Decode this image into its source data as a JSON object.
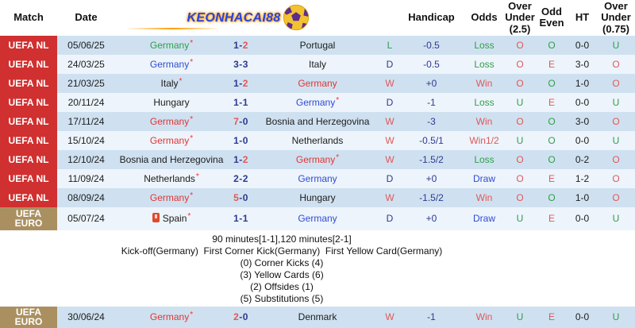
{
  "header": {
    "logo_text": "KEONHACAI88",
    "columns": {
      "match": "Match",
      "date": "Date",
      "handicap": "Handicap",
      "odds": "Odds",
      "over_under_25": "Over Under (2.5)",
      "odd_even": "Odd Even",
      "ht": "HT",
      "over_under_075": "Over Under (0.75)"
    }
  },
  "colors": {
    "palette": {
      "green": "#2f9e4b",
      "red": "#e05858",
      "team_red": "#e03535",
      "navy": "#2c3a90",
      "blue": "#2f4cd4",
      "black": "#1c1c1c",
      "badge_red": "#d03030",
      "badge_tan": "#aa9060",
      "row_odd": "#cfe1f0",
      "row_even": "#edf4fb"
    }
  },
  "rows": [
    {
      "comp": "UEFA NL",
      "comp_color": "badge_red",
      "date": "05/06/25",
      "home": {
        "name": "Germany",
        "color": "green",
        "star": true
      },
      "score": {
        "home": "1",
        "away": "2",
        "home_color": "navy",
        "away_color": "red"
      },
      "away": {
        "name": "Portugal",
        "color": "black",
        "star": false
      },
      "result": {
        "text": "L",
        "color": "green"
      },
      "handicap": "-0.5",
      "odds": {
        "text": "Loss",
        "color": "green"
      },
      "ou25": {
        "text": "O",
        "color": "red"
      },
      "oddeven": {
        "text": "O",
        "color": "green"
      },
      "ht": "0-0",
      "ou075": {
        "text": "U",
        "color": "green"
      }
    },
    {
      "comp": "UEFA NL",
      "comp_color": "badge_red",
      "date": "24/03/25",
      "home": {
        "name": "Germany",
        "color": "blue",
        "star": true
      },
      "score": {
        "home": "3",
        "away": "3",
        "home_color": "navy",
        "away_color": "navy"
      },
      "away": {
        "name": "Italy",
        "color": "black",
        "star": false
      },
      "result": {
        "text": "D",
        "color": "navy"
      },
      "handicap": "-0.5",
      "odds": {
        "text": "Loss",
        "color": "green"
      },
      "ou25": {
        "text": "O",
        "color": "red"
      },
      "oddeven": {
        "text": "E",
        "color": "red"
      },
      "ht": "3-0",
      "ou075": {
        "text": "O",
        "color": "red"
      }
    },
    {
      "comp": "UEFA NL",
      "comp_color": "badge_red",
      "date": "21/03/25",
      "home": {
        "name": "Italy",
        "color": "black",
        "star": true
      },
      "score": {
        "home": "1",
        "away": "2",
        "home_color": "navy",
        "away_color": "red"
      },
      "away": {
        "name": "Germany",
        "color": "team_red",
        "star": false
      },
      "result": {
        "text": "W",
        "color": "red"
      },
      "handicap": "+0",
      "odds": {
        "text": "Win",
        "color": "red"
      },
      "ou25": {
        "text": "O",
        "color": "red"
      },
      "oddeven": {
        "text": "O",
        "color": "green"
      },
      "ht": "1-0",
      "ou075": {
        "text": "O",
        "color": "red"
      }
    },
    {
      "comp": "UEFA NL",
      "comp_color": "badge_red",
      "date": "20/11/24",
      "home": {
        "name": "Hungary",
        "color": "black",
        "star": false
      },
      "score": {
        "home": "1",
        "away": "1",
        "home_color": "navy",
        "away_color": "navy"
      },
      "away": {
        "name": "Germany",
        "color": "blue",
        "star": true
      },
      "result": {
        "text": "D",
        "color": "navy"
      },
      "handicap": "-1",
      "odds": {
        "text": "Loss",
        "color": "green"
      },
      "ou25": {
        "text": "U",
        "color": "green"
      },
      "oddeven": {
        "text": "E",
        "color": "red"
      },
      "ht": "0-0",
      "ou075": {
        "text": "U",
        "color": "green"
      }
    },
    {
      "comp": "UEFA NL",
      "comp_color": "badge_red",
      "date": "17/11/24",
      "home": {
        "name": "Germany",
        "color": "team_red",
        "star": true
      },
      "score": {
        "home": "7",
        "away": "0",
        "home_color": "red",
        "away_color": "navy"
      },
      "away": {
        "name": "Bosnia and Herzegovina",
        "color": "black",
        "star": false
      },
      "result": {
        "text": "W",
        "color": "red"
      },
      "handicap": "-3",
      "odds": {
        "text": "Win",
        "color": "red"
      },
      "ou25": {
        "text": "O",
        "color": "red"
      },
      "oddeven": {
        "text": "O",
        "color": "green"
      },
      "ht": "3-0",
      "ou075": {
        "text": "O",
        "color": "red"
      }
    },
    {
      "comp": "UEFA NL",
      "comp_color": "badge_red",
      "date": "15/10/24",
      "home": {
        "name": "Germany",
        "color": "team_red",
        "star": true
      },
      "score": {
        "home": "1",
        "away": "0",
        "home_color": "navy",
        "away_color": "navy"
      },
      "away": {
        "name": "Netherlands",
        "color": "black",
        "star": false
      },
      "result": {
        "text": "W",
        "color": "red"
      },
      "handicap": "-0.5/1",
      "odds": {
        "text": "Win1/2",
        "color": "red"
      },
      "ou25": {
        "text": "U",
        "color": "green"
      },
      "oddeven": {
        "text": "O",
        "color": "green"
      },
      "ht": "0-0",
      "ou075": {
        "text": "U",
        "color": "green"
      }
    },
    {
      "comp": "UEFA NL",
      "comp_color": "badge_red",
      "date": "12/10/24",
      "home": {
        "name": "Bosnia and Herzegovina",
        "color": "black",
        "star": false
      },
      "score": {
        "home": "1",
        "away": "2",
        "home_color": "navy",
        "away_color": "red"
      },
      "away": {
        "name": "Germany",
        "color": "team_red",
        "star": true
      },
      "result": {
        "text": "W",
        "color": "red"
      },
      "handicap": "-1.5/2",
      "odds": {
        "text": "Loss",
        "color": "green"
      },
      "ou25": {
        "text": "O",
        "color": "red"
      },
      "oddeven": {
        "text": "O",
        "color": "green"
      },
      "ht": "0-2",
      "ou075": {
        "text": "O",
        "color": "red"
      }
    },
    {
      "comp": "UEFA NL",
      "comp_color": "badge_red",
      "date": "11/09/24",
      "home": {
        "name": "Netherlands",
        "color": "black",
        "star": true
      },
      "score": {
        "home": "2",
        "away": "2",
        "home_color": "navy",
        "away_color": "navy"
      },
      "away": {
        "name": "Germany",
        "color": "blue",
        "star": false
      },
      "result": {
        "text": "D",
        "color": "navy"
      },
      "handicap": "+0",
      "odds": {
        "text": "Draw",
        "color": "blue"
      },
      "ou25": {
        "text": "O",
        "color": "red"
      },
      "oddeven": {
        "text": "E",
        "color": "red"
      },
      "ht": "1-2",
      "ou075": {
        "text": "O",
        "color": "red"
      }
    },
    {
      "comp": "UEFA NL",
      "comp_color": "badge_red",
      "date": "08/09/24",
      "home": {
        "name": "Germany",
        "color": "team_red",
        "star": true
      },
      "score": {
        "home": "5",
        "away": "0",
        "home_color": "red",
        "away_color": "navy"
      },
      "away": {
        "name": "Hungary",
        "color": "black",
        "star": false
      },
      "result": {
        "text": "W",
        "color": "red"
      },
      "handicap": "-1.5/2",
      "odds": {
        "text": "Win",
        "color": "red"
      },
      "ou25": {
        "text": "O",
        "color": "red"
      },
      "oddeven": {
        "text": "O",
        "color": "green"
      },
      "ht": "1-0",
      "ou075": {
        "text": "O",
        "color": "red"
      }
    },
    {
      "comp": "UEFA EURO",
      "comp_color": "badge_tan",
      "date": "05/07/24",
      "home": {
        "name": "Spain",
        "color": "black",
        "star": true,
        "card_icon": true
      },
      "score": {
        "home": "1",
        "away": "1",
        "home_color": "navy",
        "away_color": "navy"
      },
      "away": {
        "name": "Germany",
        "color": "blue",
        "star": false
      },
      "result": {
        "text": "D",
        "color": "navy"
      },
      "handicap": "+0",
      "odds": {
        "text": "Draw",
        "color": "blue"
      },
      "ou25": {
        "text": "U",
        "color": "green"
      },
      "oddeven": {
        "text": "E",
        "color": "red"
      },
      "ht": "0-0",
      "ou075": {
        "text": "U",
        "color": "green"
      }
    },
    {
      "comp": "UEFA EURO",
      "comp_color": "badge_tan",
      "date": "30/06/24",
      "home": {
        "name": "Germany",
        "color": "team_red",
        "star": true
      },
      "score": {
        "home": "2",
        "away": "0",
        "home_color": "red",
        "away_color": "navy"
      },
      "away": {
        "name": "Denmark",
        "color": "black",
        "star": false
      },
      "result": {
        "text": "W",
        "color": "red"
      },
      "handicap": "-1",
      "odds": {
        "text": "Win",
        "color": "red"
      },
      "ou25": {
        "text": "U",
        "color": "green"
      },
      "oddeven": {
        "text": "E",
        "color": "red"
      },
      "ht": "0-0",
      "ou075": {
        "text": "U",
        "color": "green"
      }
    }
  ],
  "stats": {
    "after_row": 9,
    "lines": [
      "90 minutes[1-1],120 minutes[2-1]",
      "Kick-off(Germany)  First Corner Kick(Germany)  First Yellow Card(Germany)",
      "(0) Corner Kicks (4)",
      "(3) Yellow Cards (6)",
      "(2) Offsides (1)",
      "(5) Substitutions (5)"
    ]
  }
}
